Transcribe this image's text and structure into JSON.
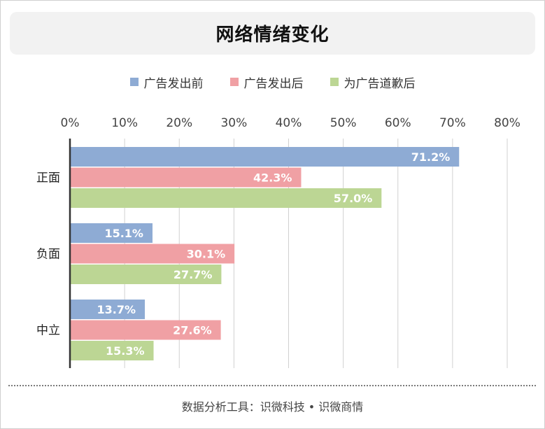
{
  "title": "网络情绪变化",
  "footer": "数据分析工具：识微科技 • 识微商情",
  "colors": {
    "series": [
      "#8eabd4",
      "#f0a0a4",
      "#bcd694"
    ],
    "title_bg": "#f2f2f2",
    "grid": "#d0d0d0",
    "axis": "#333333"
  },
  "chart_data": {
    "type": "bar",
    "orientation": "horizontal",
    "title": "网络情绪变化",
    "categories": [
      "正面",
      "负面",
      "中立"
    ],
    "series": [
      {
        "name": "广告发出前",
        "values": [
          71.2,
          15.1,
          13.7
        ]
      },
      {
        "name": "广告发出后",
        "values": [
          42.3,
          30.1,
          27.6
        ]
      },
      {
        "name": "为广告道歉后",
        "values": [
          57.0,
          27.7,
          15.3
        ]
      }
    ],
    "value_labels": [
      [
        "71.2%",
        "15.1%",
        "13.7%"
      ],
      [
        "42.3%",
        "30.1%",
        "27.6%"
      ],
      [
        "57.0%",
        "27.7%",
        "15.3%"
      ]
    ],
    "xlim": [
      0,
      80
    ],
    "xticks": [
      0,
      10,
      20,
      30,
      40,
      50,
      60,
      70,
      80
    ],
    "xtick_labels": [
      "0%",
      "10%",
      "20%",
      "30%",
      "40%",
      "50%",
      "60%",
      "70%",
      "80%"
    ],
    "xlabel": "",
    "ylabel": "",
    "grid": true,
    "axis_position": "top",
    "legend_position": "top"
  }
}
